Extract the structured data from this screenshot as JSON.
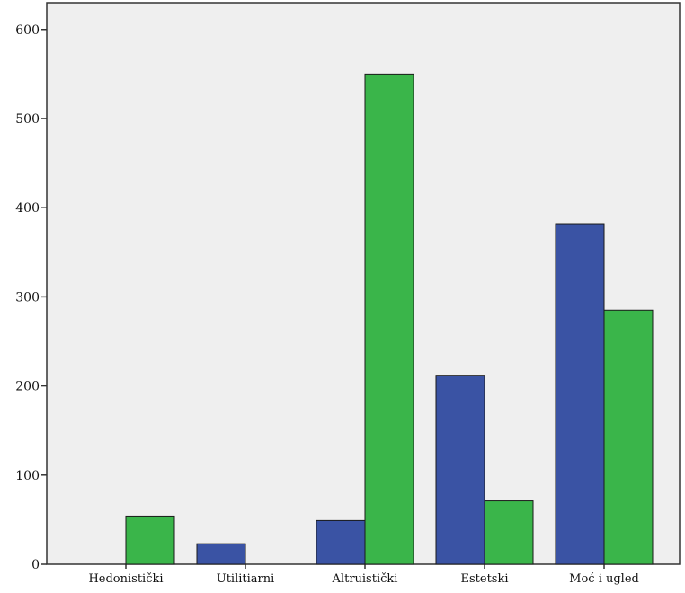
{
  "chart_data": {
    "type": "bar",
    "title": "",
    "xlabel": "",
    "ylabel": "",
    "categories": [
      "Hedonistički",
      "Utilitiarni",
      "Altruistički",
      "Estetski",
      "Moć i ugled"
    ],
    "series": [
      {
        "color": "#3a53a4",
        "values": [
          0,
          23,
          49,
          212,
          382
        ]
      },
      {
        "color": "#3ab54a",
        "values": [
          54,
          0,
          550,
          71,
          285
        ]
      }
    ],
    "ylim": [
      0,
      630
    ],
    "yticks": [
      0,
      100,
      200,
      300,
      400,
      500,
      600
    ],
    "grid": false,
    "legend": "none",
    "plot_background": "#efefef"
  }
}
